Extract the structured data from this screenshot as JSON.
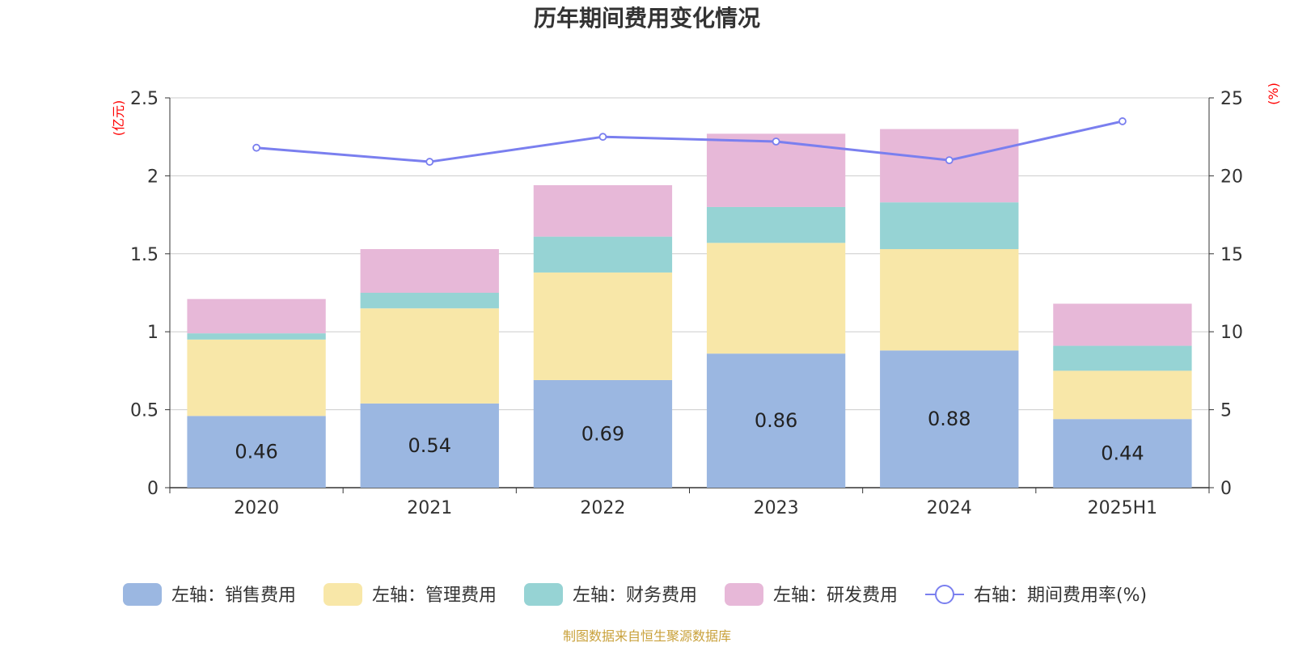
{
  "chart_data": {
    "type": "bar",
    "stacked": true,
    "title": "历年期间费用变化情况",
    "categories": [
      "2020",
      "2021",
      "2022",
      "2023",
      "2024",
      "2025H1"
    ],
    "y_left": {
      "unit": "(亿元)",
      "ylim": [
        0,
        2.5
      ],
      "ticks": [
        "0",
        "0.5",
        "1",
        "1.5",
        "2",
        "2.5"
      ]
    },
    "y_right": {
      "unit": "(%)",
      "ylim": [
        0,
        25
      ],
      "ticks": [
        "0",
        "5",
        "10",
        "15",
        "20",
        "25"
      ]
    },
    "series": [
      {
        "name": "左轴：销售费用",
        "axis": "left",
        "type": "bar",
        "color": "#9bb7e1",
        "values": [
          0.46,
          0.54,
          0.69,
          0.86,
          0.88,
          0.44
        ],
        "labels": [
          "0.46",
          "0.54",
          "0.69",
          "0.86",
          "0.88",
          "0.44"
        ]
      },
      {
        "name": "左轴：管理费用",
        "axis": "left",
        "type": "bar",
        "color": "#f8e7a8",
        "values": [
          0.49,
          0.61,
          0.69,
          0.71,
          0.65,
          0.31
        ]
      },
      {
        "name": "左轴：财务费用",
        "axis": "left",
        "type": "bar",
        "color": "#96d3d4",
        "values": [
          0.04,
          0.1,
          0.23,
          0.23,
          0.3,
          0.16
        ]
      },
      {
        "name": "左轴：研发费用",
        "axis": "left",
        "type": "bar",
        "color": "#e7b8d8",
        "values": [
          0.22,
          0.28,
          0.33,
          0.47,
          0.47,
          0.27
        ]
      },
      {
        "name": "右轴：期间费用率(%)",
        "axis": "right",
        "type": "line",
        "color": "#7a7fef",
        "values": [
          21.8,
          20.9,
          22.5,
          22.2,
          21.0,
          23.5
        ]
      }
    ],
    "grid": true,
    "legend_position": "bottom",
    "source_note": "制图数据来自恒生聚源数据库"
  }
}
